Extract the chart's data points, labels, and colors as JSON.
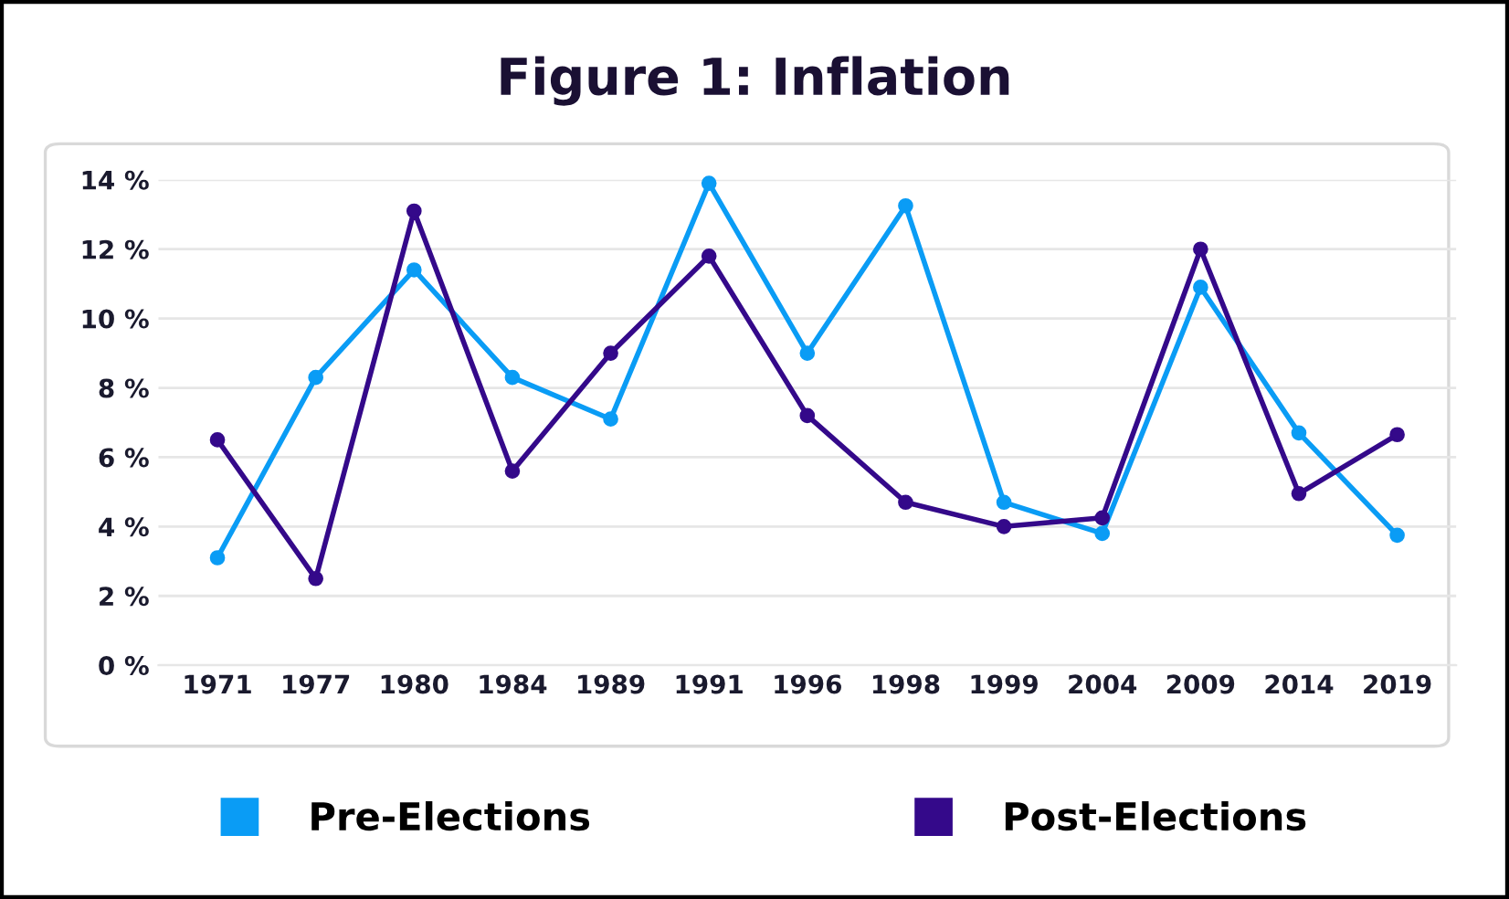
{
  "chart_data": {
    "type": "line",
    "title": "Figure 1: Inflation",
    "categories": [
      "1971",
      "1977",
      "1980",
      "1984",
      "1989",
      "1991",
      "1996",
      "1998",
      "1999",
      "2004",
      "2009",
      "2014",
      "2019"
    ],
    "series": [
      {
        "name": "Pre-Elections",
        "color": "#0a9cf5",
        "values": [
          3.1,
          8.3,
          11.4,
          8.3,
          7.1,
          13.9,
          9.0,
          13.25,
          4.7,
          3.8,
          10.9,
          6.7,
          3.75
        ]
      },
      {
        "name": "Post-Elections",
        "color": "#34098a",
        "values": [
          6.5,
          2.5,
          13.1,
          5.6,
          9.0,
          11.8,
          7.2,
          4.7,
          4.0,
          4.25,
          12.0,
          4.95,
          6.65
        ]
      }
    ],
    "ylim": [
      0,
      14
    ],
    "yticks": [
      {
        "value": 0,
        "label": "0 %"
      },
      {
        "value": 2,
        "label": "2 %"
      },
      {
        "value": 4,
        "label": "4 %"
      },
      {
        "value": 6,
        "label": "6 %"
      },
      {
        "value": 8,
        "label": "8 %"
      },
      {
        "value": 10,
        "label": "10 %"
      },
      {
        "value": 12,
        "label": "12 %"
      },
      {
        "value": 14,
        "label": "14 %"
      }
    ],
    "grid": "y",
    "legend": "bottom",
    "marker": "circle",
    "line_style": "solid"
  }
}
